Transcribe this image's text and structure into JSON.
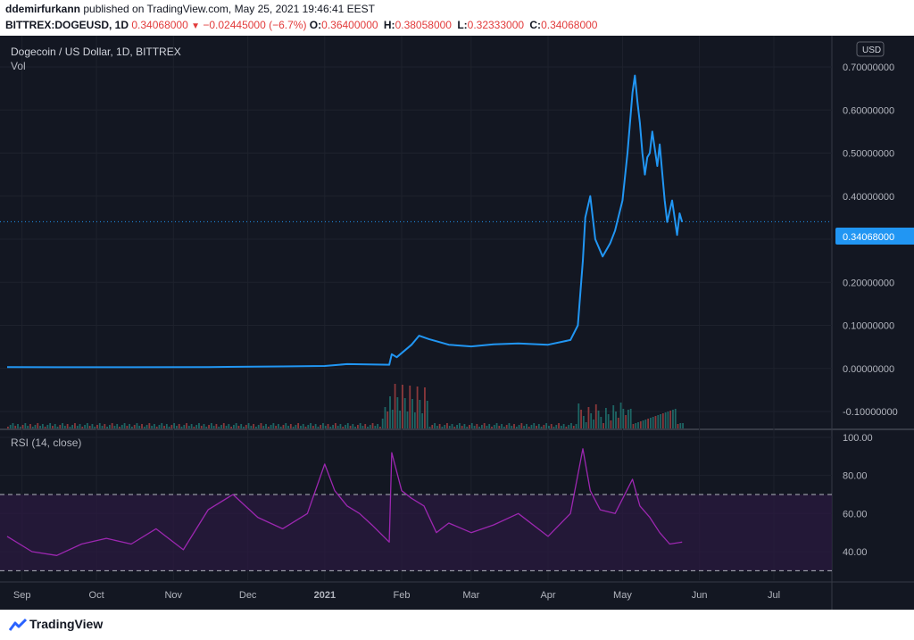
{
  "header": {
    "publisher": "ddemirfurkann",
    "published_text": " published on TradingView.com, May 25, 2021 19:46:41 EEST",
    "symbol": "BITTREX:DOGEUSD, 1D",
    "last": "0.34068000",
    "change": "−0.02445000 (−6.7%)",
    "o_label": "O:",
    "o": "0.36400000",
    "h_label": "H:",
    "h": "0.38058000",
    "l_label": "L:",
    "l": "0.32333000",
    "c_label": "C:",
    "c": "0.34068000"
  },
  "chart": {
    "title": "Dogecoin / US Dollar, 1D, BITTREX",
    "vol_label": "Vol",
    "currency_button": "USD",
    "price_tag": "0.34068000",
    "rsi_label": "RSI (14, close)"
  },
  "footer": {
    "brand": "TradingView"
  },
  "colors": {
    "background": "#131722",
    "price_line": "#2196f3",
    "rsi_line": "#9c27b0",
    "rsi_band": "#2a1a3f",
    "vol_up": "#26a69a",
    "vol_down": "#ef5350",
    "text": "#b2b5be"
  },
  "chart_data": [
    {
      "type": "line",
      "title": "Dogecoin / US Dollar, 1D, BITTREX",
      "x_ticks": [
        "Sep",
        "Oct",
        "Nov",
        "Dec",
        "2021",
        "Feb",
        "Mar",
        "Apr",
        "May",
        "Jun",
        "Jul"
      ],
      "y_ticks": [
        "0.70000000",
        "0.60000000",
        "0.50000000",
        "0.40000000",
        "0.30000000",
        "0.20000000",
        "0.10000000",
        "0.00000000",
        "-0.10000000"
      ],
      "ylim": [
        -0.11,
        0.73
      ],
      "series": [
        {
          "x": [
            "2020-08-26",
            "2020-09-15",
            "2020-10-15",
            "2020-11-15",
            "2020-12-15",
            "2021-01-01",
            "2021-01-10",
            "2021-01-27",
            "2021-01-28",
            "2021-01-30",
            "2021-02-05",
            "2021-02-08",
            "2021-02-12",
            "2021-02-20",
            "2021-03-01",
            "2021-03-10",
            "2021-03-20",
            "2021-04-01",
            "2021-04-10",
            "2021-04-13",
            "2021-04-15",
            "2021-04-16",
            "2021-04-18",
            "2021-04-20",
            "2021-04-23",
            "2021-04-26",
            "2021-04-28",
            "2021-05-01",
            "2021-05-03",
            "2021-05-05",
            "2021-05-06",
            "2021-05-07",
            "2021-05-08",
            "2021-05-09",
            "2021-05-10",
            "2021-05-11",
            "2021-05-12",
            "2021-05-13",
            "2021-05-15",
            "2021-05-16",
            "2021-05-18",
            "2021-05-19",
            "2021-05-21",
            "2021-05-23",
            "2021-05-24",
            "2021-05-25"
          ],
          "values": [
            0.003,
            0.0029,
            0.0027,
            0.0033,
            0.0046,
            0.0057,
            0.01,
            0.0085,
            0.033,
            0.026,
            0.055,
            0.076,
            0.068,
            0.055,
            0.051,
            0.056,
            0.058,
            0.055,
            0.066,
            0.1,
            0.25,
            0.35,
            0.4,
            0.3,
            0.26,
            0.29,
            0.32,
            0.39,
            0.5,
            0.64,
            0.68,
            0.62,
            0.57,
            0.5,
            0.45,
            0.49,
            0.5,
            0.55,
            0.47,
            0.52,
            0.39,
            0.34,
            0.39,
            0.31,
            0.36,
            0.34
          ]
        }
      ]
    },
    {
      "type": "line",
      "title": "RSI (14, close)",
      "y_ticks": [
        "100.00",
        "80.00",
        "60.00",
        "40.00"
      ],
      "ylim": [
        20,
        100
      ],
      "levels": [
        70,
        30
      ],
      "series": [
        {
          "x": [
            "2020-08-26",
            "2020-09-05",
            "2020-09-15",
            "2020-09-25",
            "2020-10-05",
            "2020-10-15",
            "2020-10-25",
            "2020-11-05",
            "2020-11-15",
            "2020-11-25",
            "2020-12-05",
            "2020-12-15",
            "2020-12-25",
            "2021-01-01",
            "2021-01-05",
            "2021-01-10",
            "2021-01-15",
            "2021-01-20",
            "2021-01-27",
            "2021-01-28",
            "2021-02-01",
            "2021-02-05",
            "2021-02-10",
            "2021-02-15",
            "2021-02-20",
            "2021-03-01",
            "2021-03-10",
            "2021-03-20",
            "2021-04-01",
            "2021-04-10",
            "2021-04-15",
            "2021-04-18",
            "2021-04-22",
            "2021-04-28",
            "2021-05-05",
            "2021-05-08",
            "2021-05-12",
            "2021-05-16",
            "2021-05-20",
            "2021-05-25"
          ],
          "values": [
            48,
            40,
            38,
            44,
            47,
            44,
            52,
            41,
            62,
            70,
            58,
            52,
            60,
            86,
            72,
            64,
            60,
            54,
            45,
            92,
            72,
            68,
            64,
            50,
            55,
            50,
            54,
            60,
            48,
            60,
            94,
            72,
            62,
            60,
            78,
            64,
            58,
            50,
            44,
            45
          ]
        }
      ]
    }
  ]
}
